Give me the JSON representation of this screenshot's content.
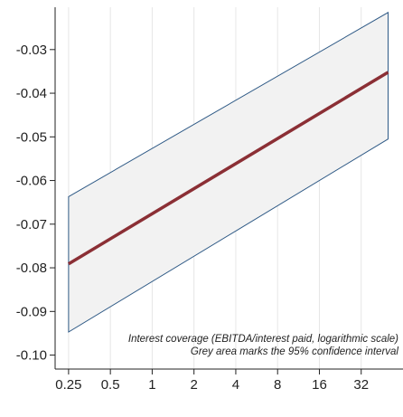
{
  "chart_data": {
    "type": "line",
    "x_scale": "log2",
    "x_ticks": [
      0.25,
      0.5,
      1,
      2,
      4,
      8,
      16,
      32
    ],
    "x_tick_labels": [
      "0.25",
      "0.5",
      "1",
      "2",
      "4",
      "8",
      "16",
      "32"
    ],
    "y_ticks": [
      -0.1,
      -0.09,
      -0.08,
      -0.07,
      -0.06,
      -0.05,
      -0.04,
      -0.03
    ],
    "y_tick_labels": [
      "-0.10",
      "-0.09",
      "-0.08",
      "-0.07",
      "-0.06",
      "-0.05",
      "-0.04",
      "-0.03"
    ],
    "xlim": [
      0.2,
      64
    ],
    "ylim": [
      -0.1032,
      -0.0203
    ],
    "series": [
      {
        "kind": "estimate",
        "color": "#8b2f35",
        "points": [
          [
            0.25,
            -0.0791
          ],
          [
            50,
            -0.0352
          ]
        ]
      },
      {
        "kind": "confidence-band",
        "fill": "#f2f2f2",
        "stroke": "#2f5a86",
        "lower": [
          [
            0.25,
            -0.0947
          ],
          [
            50,
            -0.0505
          ]
        ],
        "upper": [
          [
            0.25,
            -0.0637
          ],
          [
            50,
            -0.0215
          ]
        ]
      }
    ],
    "annotations": [
      "Interest coverage (EBITDA/interest paid, logarithmic scale)",
      "Grey area marks the 95% confidence interval"
    ],
    "grid": "vertical lines at x ticks",
    "legend": "none"
  }
}
